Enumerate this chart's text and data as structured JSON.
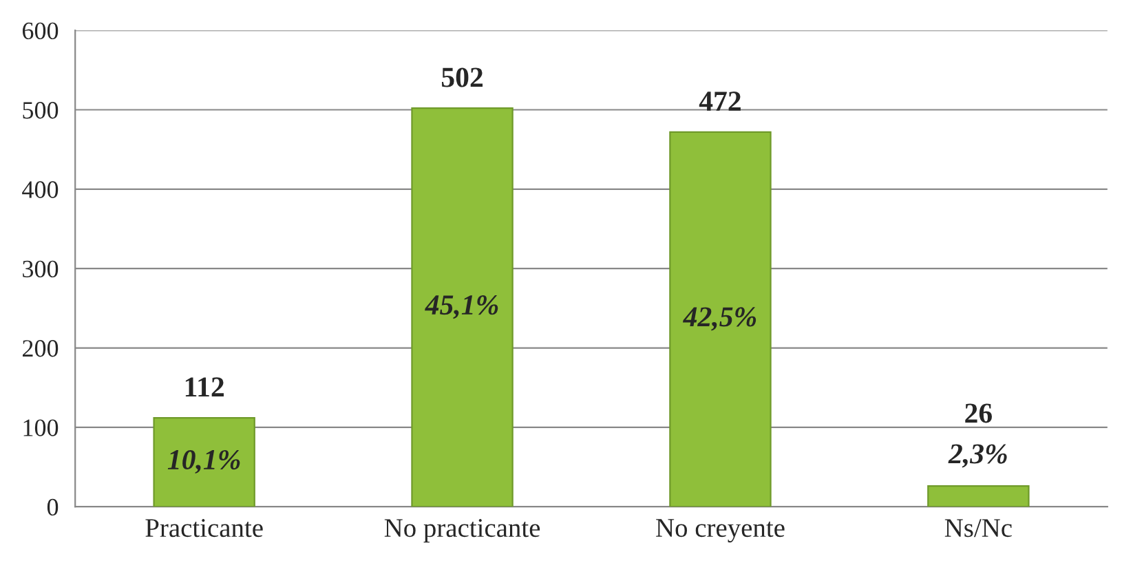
{
  "chart_data": {
    "type": "bar",
    "categories": [
      "Practicante",
      "No practicante",
      "No creyente",
      "Ns/Nc"
    ],
    "values": [
      112,
      502,
      472,
      26
    ],
    "color": "#8fbf3a",
    "data_labels": true,
    "annotations": [
      "10,1%",
      "45,1%",
      "42,5%",
      "2,3%"
    ],
    "ylim": [
      0,
      600
    ],
    "yticks": [
      0,
      100,
      200,
      300,
      400,
      500,
      600
    ],
    "grid": "y"
  }
}
